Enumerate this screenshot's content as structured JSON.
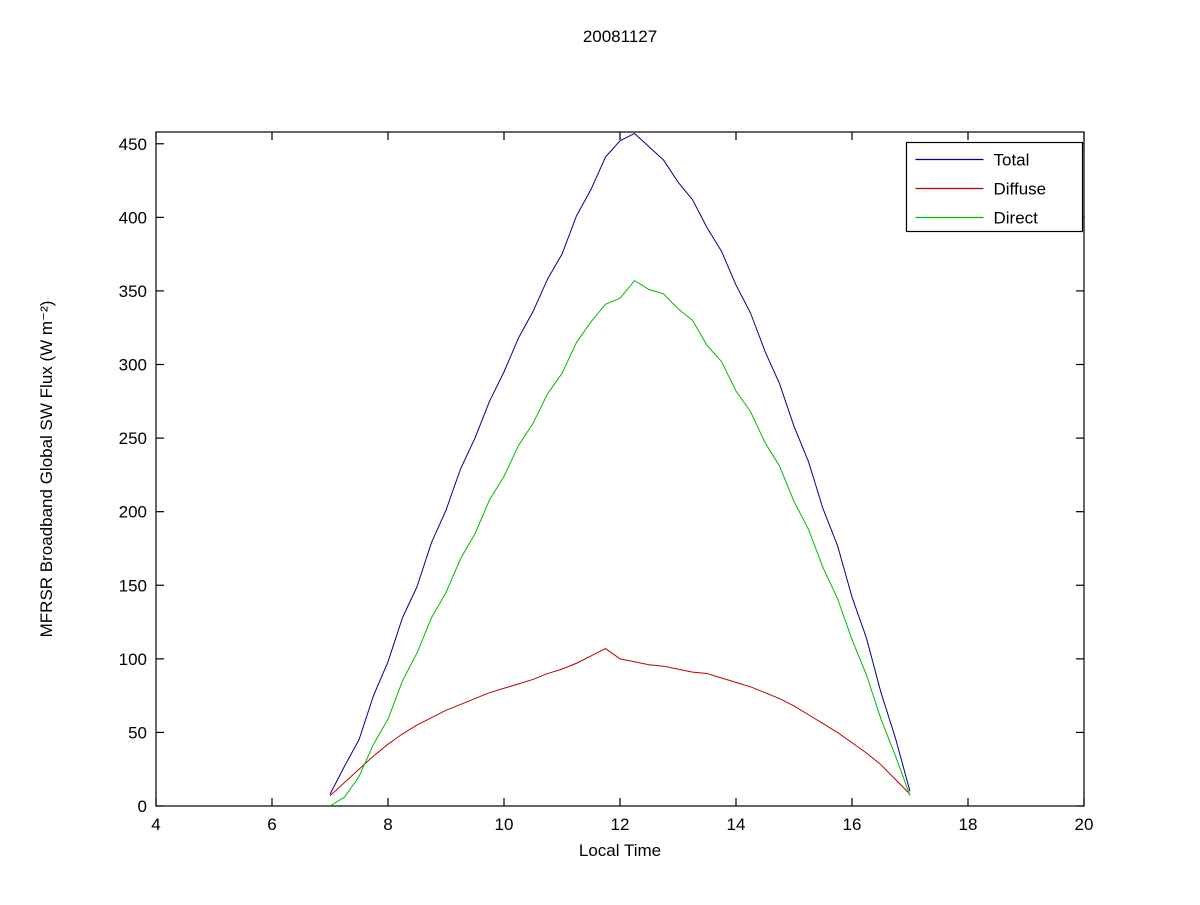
{
  "figure": {
    "title": "20081127",
    "background": "#ffffff"
  },
  "axes": {
    "xlabel": "Local Time",
    "ylabel": "MFRSR Broadband Global SW Flux (W m⁻²)",
    "xlim": [
      4,
      20
    ],
    "ylim": [
      0,
      458
    ],
    "x_ticks": [
      4,
      6,
      8,
      10,
      12,
      14,
      16,
      18,
      20
    ],
    "y_ticks": [
      0,
      50,
      100,
      150,
      200,
      250,
      300,
      350,
      400,
      450
    ],
    "axis_color": "#000000",
    "grid": false
  },
  "legend": {
    "position": "top-right",
    "entries": [
      {
        "label": "Total",
        "color": "#00008B"
      },
      {
        "label": "Diffuse",
        "color": "#C00000"
      },
      {
        "label": "Direct",
        "color": "#00BB00"
      }
    ]
  },
  "chart_data": {
    "type": "line",
    "title": "20081127",
    "xlabel": "Local Time",
    "ylabel": "MFRSR Broadband Global SW Flux (W m⁻²)",
    "xlim": [
      4,
      20
    ],
    "ylim": [
      0,
      458
    ],
    "grid": false,
    "legend_position": "top-right",
    "x": [
      7,
      7.25,
      7.5,
      7.75,
      8,
      8.25,
      8.5,
      8.75,
      9,
      9.25,
      9.5,
      9.75,
      10,
      10.25,
      10.5,
      10.75,
      11,
      11.25,
      11.5,
      11.75,
      12,
      12.25,
      12.5,
      12.75,
      13,
      13.25,
      13.5,
      13.75,
      14,
      14.25,
      14.5,
      14.75,
      15,
      15.25,
      15.5,
      15.75,
      16,
      16.25,
      16.5,
      16.75,
      17
    ],
    "series": [
      {
        "name": "Total",
        "color": "#00008B",
        "values": [
          8,
          27,
          45,
          75,
          98,
          128,
          149,
          179,
          201,
          229,
          250,
          275,
          295,
          318,
          336,
          358,
          375,
          401,
          419,
          441,
          452,
          457,
          448,
          439,
          424,
          412,
          393,
          377,
          354,
          335,
          309,
          287,
          258,
          234,
          202,
          177,
          142,
          114,
          77,
          46,
          10
        ]
      },
      {
        "name": "Diffuse",
        "color": "#C00000",
        "values": [
          7,
          16,
          25,
          34,
          42,
          49,
          55,
          60,
          65,
          69,
          73,
          77,
          80,
          83,
          86,
          90,
          93,
          97,
          102,
          107,
          100,
          98,
          96,
          95,
          93,
          91,
          90,
          87,
          84,
          81,
          77,
          73,
          68,
          62,
          56,
          50,
          43,
          36,
          28,
          18,
          8
        ]
      },
      {
        "name": "Direct",
        "color": "#00BB00",
        "values": [
          0,
          6,
          20,
          42,
          59,
          85,
          104,
          128,
          145,
          168,
          185,
          208,
          224,
          245,
          260,
          280,
          294,
          315,
          329,
          341,
          345,
          357,
          351,
          348,
          338,
          330,
          313,
          302,
          282,
          268,
          247,
          231,
          207,
          188,
          162,
          141,
          113,
          89,
          59,
          34,
          7
        ]
      }
    ]
  }
}
